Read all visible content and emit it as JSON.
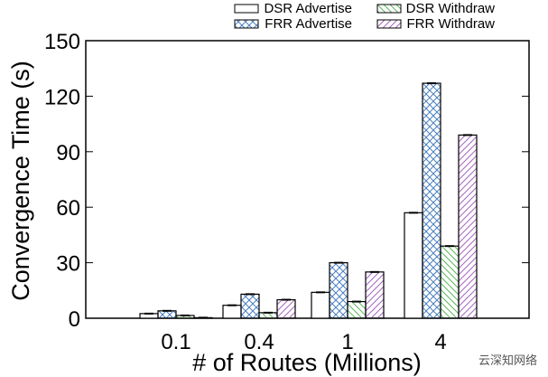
{
  "chart_data": {
    "type": "bar",
    "title": "",
    "xlabel": "# of Routes (Millions)",
    "ylabel": "Convergence Time (s)",
    "ylim": [
      0,
      150
    ],
    "yticks": [
      0,
      30,
      60,
      90,
      120,
      150
    ],
    "categories": [
      "0.1",
      "0.4",
      "1",
      "4"
    ],
    "legend_position": "top-right",
    "error_bars": true,
    "series": [
      {
        "name": "DSR Advertise",
        "values": [
          2.5,
          7,
          14,
          57
        ],
        "color": "#000000",
        "pattern": "none"
      },
      {
        "name": "FRR Advertise",
        "values": [
          4,
          13,
          30,
          127
        ],
        "color": "#4a7fc1",
        "pattern": "crosshatch"
      },
      {
        "name": "DSR Withdraw",
        "values": [
          1.5,
          3,
          9,
          39
        ],
        "color": "#5cb85c",
        "pattern": "diagonal-back"
      },
      {
        "name": "FRR Withdraw",
        "values": [
          0.3,
          10,
          25,
          99
        ],
        "color": "#a666c0",
        "pattern": "diagonal-forward"
      }
    ]
  },
  "watermark": "云深知网络"
}
